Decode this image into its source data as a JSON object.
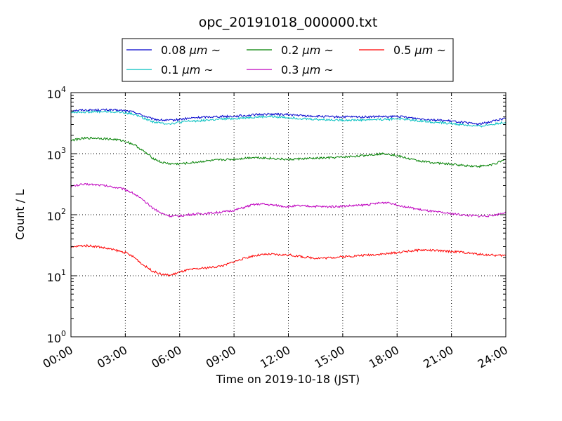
{
  "chart_data": {
    "type": "line",
    "title": "opc_20191018_000000.txt",
    "xlabel": "Time on 2019-10-18 (JST)",
    "ylabel": "Count / L",
    "yscale": "log",
    "xlim": [
      0,
      24
    ],
    "ylim": [
      1,
      10000
    ],
    "grid": true,
    "legend_position": "top-center",
    "x_tick_labels": [
      "00:00",
      "03:00",
      "06:00",
      "09:00",
      "12:00",
      "15:00",
      "18:00",
      "21:00",
      "24:00"
    ],
    "y_tick_labels": [
      {
        "base": "10",
        "exp": "0"
      },
      {
        "base": "10",
        "exp": "1"
      },
      {
        "base": "10",
        "exp": "2"
      },
      {
        "base": "10",
        "exp": "3"
      },
      {
        "base": "10",
        "exp": "4"
      }
    ],
    "x_hours": [
      0,
      0.5,
      1,
      1.5,
      2,
      2.5,
      3,
      3.5,
      4,
      4.5,
      5,
      5.5,
      6,
      6.5,
      7,
      7.5,
      8,
      8.5,
      9,
      9.5,
      10,
      10.5,
      11,
      11.5,
      12,
      12.5,
      13,
      13.5,
      14,
      14.5,
      15,
      15.5,
      16,
      16.5,
      17,
      17.5,
      18,
      18.5,
      19,
      19.5,
      20,
      20.5,
      21,
      21.5,
      22,
      22.5,
      23,
      23.5,
      24
    ],
    "series": [
      {
        "name": "0.08 μm ~",
        "legend_base": "0.08 ",
        "legend_unit": "μm",
        "legend_tail": " ~",
        "color": "#0000cc",
        "values": [
          5100,
          5150,
          5180,
          5200,
          5200,
          5150,
          5050,
          4800,
          4200,
          3700,
          3550,
          3500,
          3650,
          3800,
          3900,
          4000,
          4050,
          4100,
          4100,
          4200,
          4300,
          4400,
          4450,
          4400,
          4350,
          4250,
          4150,
          4100,
          4050,
          4000,
          4000,
          4000,
          4000,
          4000,
          4050,
          4000,
          4100,
          3950,
          3800,
          3700,
          3600,
          3500,
          3400,
          3300,
          3150,
          3050,
          3250,
          3550,
          3800
        ]
      },
      {
        "name": "0.1 μm ~",
        "legend_base": "0.1 ",
        "legend_unit": "μm",
        "legend_tail": " ~",
        "color": "#00bfbf",
        "values": [
          4750,
          4800,
          4820,
          4850,
          4850,
          4800,
          4700,
          4400,
          3850,
          3350,
          3150,
          3100,
          3250,
          3400,
          3450,
          3550,
          3600,
          3700,
          3750,
          3850,
          3950,
          4000,
          4050,
          3980,
          3900,
          3800,
          3700,
          3650,
          3600,
          3580,
          3560,
          3560,
          3570,
          3600,
          3650,
          3650,
          3750,
          3650,
          3500,
          3400,
          3300,
          3200,
          3100,
          3000,
          2900,
          2800,
          2950,
          3100,
          3300
        ]
      },
      {
        "name": "0.2 μm ~",
        "legend_base": "0.2 ",
        "legend_unit": "μm",
        "legend_tail": " ~",
        "color": "#008000",
        "values": [
          1650,
          1750,
          1800,
          1800,
          1750,
          1700,
          1600,
          1400,
          1100,
          850,
          720,
          680,
          680,
          700,
          730,
          760,
          780,
          800,
          810,
          840,
          870,
          860,
          840,
          820,
          800,
          820,
          830,
          840,
          850,
          860,
          880,
          900,
          920,
          960,
          990,
          1000,
          920,
          850,
          780,
          740,
          710,
          690,
          670,
          650,
          630,
          620,
          640,
          700,
          800
        ]
      },
      {
        "name": "0.3 μm ~",
        "legend_base": "0.3 ",
        "legend_unit": "μm",
        "legend_tail": " ~",
        "color": "#bf00bf",
        "values": [
          290,
          310,
          315,
          310,
          295,
          280,
          260,
          220,
          170,
          130,
          105,
          95,
          95,
          100,
          103,
          105,
          108,
          112,
          118,
          130,
          145,
          150,
          145,
          140,
          135,
          140,
          138,
          137,
          135,
          136,
          138,
          140,
          142,
          148,
          155,
          160,
          145,
          135,
          125,
          118,
          112,
          108,
          104,
          100,
          97,
          95,
          96,
          100,
          112
        ]
      },
      {
        "name": "0.5 μm ~",
        "legend_base": "0.5 ",
        "legend_unit": "μm",
        "legend_tail": " ~",
        "color": "#ff0000",
        "values": [
          29,
          31,
          31,
          30,
          28,
          26,
          24,
          20,
          15,
          12,
          10.5,
          10.2,
          11.5,
          12.5,
          13,
          13.5,
          14,
          15,
          17,
          19,
          21,
          22,
          22.5,
          22,
          22,
          21,
          20,
          19.5,
          19.5,
          20,
          20.5,
          21,
          21.5,
          22,
          22.5,
          23,
          24,
          25,
          26,
          26.5,
          26,
          25.5,
          25,
          24.5,
          23.5,
          22.5,
          22,
          21.5,
          21.5
        ]
      }
    ]
  }
}
